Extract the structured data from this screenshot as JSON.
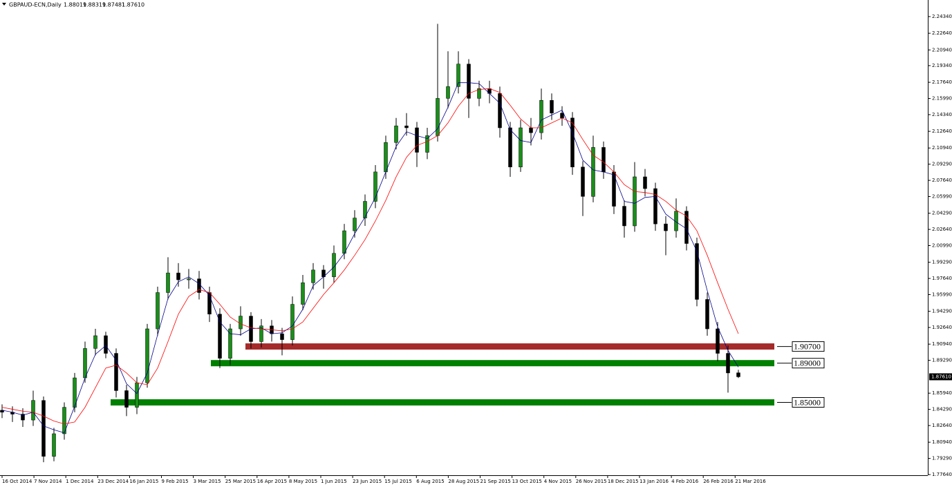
{
  "chart_data": {
    "type": "candlestick",
    "title": "GBPAUD-ECN,Daily",
    "quote": [
      "1.88019",
      "1.88319",
      "1.87481",
      "1.87610"
    ],
    "colors": {
      "up": "#1a8f1a",
      "down": "#000000",
      "wick": "#000000"
    },
    "ohlc": [
      [
        1.842,
        1.848,
        1.834,
        1.84
      ],
      [
        1.84,
        1.846,
        1.83,
        1.838
      ],
      [
        1.838,
        1.844,
        1.825,
        1.832
      ],
      [
        1.832,
        1.862,
        1.826,
        1.852
      ],
      [
        1.852,
        1.856,
        1.789,
        1.795
      ],
      [
        1.795,
        1.824,
        1.79,
        1.818
      ],
      [
        1.818,
        1.85,
        1.812,
        1.845
      ],
      [
        1.845,
        1.88,
        1.84,
        1.875
      ],
      [
        1.875,
        1.912,
        1.87,
        1.905
      ],
      [
        1.905,
        1.925,
        1.898,
        1.918
      ],
      [
        1.918,
        1.922,
        1.895,
        1.9
      ],
      [
        1.9,
        1.905,
        1.855,
        1.862
      ],
      [
        1.862,
        1.868,
        1.836,
        1.845
      ],
      [
        1.845,
        1.876,
        1.838,
        1.87
      ],
      [
        1.87,
        1.93,
        1.865,
        1.925
      ],
      [
        1.925,
        1.968,
        1.918,
        1.962
      ],
      [
        1.962,
        1.998,
        1.955,
        1.982
      ],
      [
        1.982,
        1.992,
        1.968,
        1.975
      ],
      [
        1.975,
        1.986,
        1.966,
        1.976
      ],
      [
        1.976,
        1.984,
        1.955,
        1.962
      ],
      [
        1.962,
        1.968,
        1.932,
        1.94
      ],
      [
        1.94,
        1.946,
        1.885,
        1.895
      ],
      [
        1.895,
        1.93,
        1.888,
        1.925
      ],
      [
        1.925,
        1.948,
        1.918,
        1.938
      ],
      [
        1.938,
        1.942,
        1.905,
        1.912
      ],
      [
        1.912,
        1.935,
        1.906,
        1.928
      ],
      [
        1.928,
        1.934,
        1.912,
        1.92
      ],
      [
        1.92,
        1.926,
        1.898,
        1.914
      ],
      [
        1.914,
        1.958,
        1.908,
        1.95
      ],
      [
        1.95,
        1.98,
        1.944,
        1.972
      ],
      [
        1.972,
        1.992,
        1.965,
        1.985
      ],
      [
        1.985,
        1.99,
        1.966,
        1.978
      ],
      [
        1.978,
        2.01,
        1.972,
        2.002
      ],
      [
        2.002,
        2.032,
        1.996,
        2.025
      ],
      [
        2.025,
        2.046,
        2.018,
        2.038
      ],
      [
        2.038,
        2.062,
        2.03,
        2.055
      ],
      [
        2.055,
        2.092,
        2.048,
        2.085
      ],
      [
        2.085,
        2.122,
        2.078,
        2.115
      ],
      [
        2.115,
        2.14,
        2.108,
        2.132
      ],
      [
        2.132,
        2.145,
        2.122,
        2.13
      ],
      [
        2.13,
        2.136,
        2.09,
        2.105
      ],
      [
        2.105,
        2.13,
        2.098,
        2.122
      ],
      [
        2.122,
        2.236,
        2.116,
        2.16
      ],
      [
        2.16,
        2.208,
        2.15,
        2.172
      ],
      [
        2.172,
        2.208,
        2.165,
        2.195
      ],
      [
        2.195,
        2.2,
        2.14,
        2.16
      ],
      [
        2.16,
        2.178,
        2.152,
        2.17
      ],
      [
        2.17,
        2.178,
        2.155,
        2.165
      ],
      [
        2.165,
        2.172,
        2.12,
        2.13
      ],
      [
        2.13,
        2.136,
        2.08,
        2.09
      ],
      [
        2.09,
        2.138,
        2.085,
        2.13
      ],
      [
        2.13,
        2.14,
        2.112,
        2.125
      ],
      [
        2.125,
        2.17,
        2.118,
        2.158
      ],
      [
        2.158,
        2.165,
        2.138,
        2.145
      ],
      [
        2.145,
        2.152,
        2.132,
        2.14
      ],
      [
        2.14,
        2.146,
        2.082,
        2.09
      ],
      [
        2.09,
        2.096,
        2.04,
        2.06
      ],
      [
        2.06,
        2.122,
        2.054,
        2.11
      ],
      [
        2.11,
        2.116,
        2.078,
        2.085
      ],
      [
        2.085,
        2.092,
        2.042,
        2.05
      ],
      [
        2.05,
        2.056,
        2.018,
        2.03
      ],
      [
        2.03,
        2.095,
        2.024,
        2.08
      ],
      [
        2.08,
        2.088,
        2.06,
        2.068
      ],
      [
        2.068,
        2.074,
        2.025,
        2.032
      ],
      [
        2.032,
        2.04,
        2.0,
        2.025
      ],
      [
        2.025,
        2.058,
        2.018,
        2.045
      ],
      [
        2.045,
        2.05,
        2.005,
        2.012
      ],
      [
        2.012,
        2.018,
        1.948,
        1.955
      ],
      [
        1.955,
        1.962,
        1.918,
        1.925
      ],
      [
        1.925,
        1.932,
        1.892,
        1.9
      ],
      [
        1.9,
        1.908,
        1.86,
        1.88
      ],
      [
        1.88019,
        1.88319,
        1.87481,
        1.8761
      ]
    ],
    "series": [
      {
        "color": "#00008b",
        "values": [
          1.842,
          1.84,
          1.837,
          1.84,
          1.826,
          1.822,
          1.819,
          1.846,
          1.875,
          1.899,
          1.908,
          1.893,
          1.869,
          1.859,
          1.88,
          1.919,
          1.956,
          1.973,
          1.978,
          1.971,
          1.959,
          1.932,
          1.92,
          1.919,
          1.925,
          1.926,
          1.92,
          1.921,
          1.928,
          1.945,
          1.969,
          1.978,
          1.988,
          2.002,
          2.022,
          2.039,
          2.059,
          2.085,
          2.111,
          2.126,
          2.122,
          2.119,
          2.129,
          2.151,
          2.176,
          2.176,
          2.175,
          2.165,
          2.155,
          2.128,
          2.117,
          2.115,
          2.138,
          2.143,
          2.148,
          2.125,
          2.097,
          2.087,
          2.085,
          2.082,
          2.055,
          2.053,
          2.059,
          2.06,
          2.042,
          2.034,
          2.027,
          2.004,
          1.964,
          1.927,
          1.903,
          1.886
        ]
      },
      {
        "color": "#ff0000",
        "values": [
          1.845,
          1.843,
          1.841,
          1.84,
          1.836,
          1.831,
          1.828,
          1.83,
          1.845,
          1.865,
          1.885,
          1.888,
          1.88,
          1.87,
          1.868,
          1.885,
          1.912,
          1.94,
          1.958,
          1.965,
          1.962,
          1.95,
          1.937,
          1.93,
          1.926,
          1.925,
          1.924,
          1.923,
          1.925,
          1.932,
          1.946,
          1.96,
          1.972,
          1.985,
          2.0,
          2.016,
          2.035,
          2.056,
          2.08,
          2.1,
          2.112,
          2.116,
          2.122,
          2.135,
          2.152,
          2.165,
          2.169,
          2.17,
          2.166,
          2.153,
          2.139,
          2.13,
          2.13,
          2.135,
          2.14,
          2.135,
          2.118,
          2.102,
          2.095,
          2.085,
          2.072,
          2.065,
          2.064,
          2.062,
          2.055,
          2.046,
          2.04,
          2.025,
          2.0,
          1.972,
          1.945,
          1.92
        ]
      }
    ],
    "levels": [
      {
        "value": 1.907,
        "label": "1.90700",
        "color": "#a52a2a"
      },
      {
        "value": 1.89,
        "label": "1.89000",
        "color": "#008000"
      },
      {
        "value": 1.85,
        "label": "1.85000",
        "color": "#008000"
      }
    ],
    "current": {
      "value": 1.8761,
      "label": "1.87610"
    },
    "ylim": [
      1.7764,
      2.2589
    ],
    "yticks": [
      {
        "value": 2.2434,
        "label": "2.24340"
      },
      {
        "value": 2.2264,
        "label": "2.22640"
      },
      {
        "value": 2.2094,
        "label": "2.20940"
      },
      {
        "value": 2.1934,
        "label": "2.19340"
      },
      {
        "value": 2.1764,
        "label": "2.17640"
      },
      {
        "value": 2.1599,
        "label": "2.15990"
      },
      {
        "value": 2.1434,
        "label": "2.14340"
      },
      {
        "value": 2.1264,
        "label": "2.12640"
      },
      {
        "value": 2.1094,
        "label": "2.10940"
      },
      {
        "value": 2.0929,
        "label": "2.09290"
      },
      {
        "value": 2.0764,
        "label": "2.07640"
      },
      {
        "value": 2.0599,
        "label": "2.05990"
      },
      {
        "value": 2.0429,
        "label": "2.04290"
      },
      {
        "value": 2.0264,
        "label": "2.02640"
      },
      {
        "value": 2.0099,
        "label": "2.00990"
      },
      {
        "value": 1.9929,
        "label": "1.99290"
      },
      {
        "value": 1.9764,
        "label": "1.97640"
      },
      {
        "value": 1.9599,
        "label": "1.95990"
      },
      {
        "value": 1.9429,
        "label": "1.94290"
      },
      {
        "value": 1.9264,
        "label": "1.92640"
      },
      {
        "value": 1.9094,
        "label": "1.90940"
      },
      {
        "value": 1.8929,
        "label": "1.89290"
      },
      {
        "value": 1.8594,
        "label": "1.85940"
      },
      {
        "value": 1.8429,
        "label": "1.84290"
      },
      {
        "value": 1.8264,
        "label": "1.82640"
      },
      {
        "value": 1.8094,
        "label": "1.80940"
      },
      {
        "value": 1.7929,
        "label": "1.79290"
      },
      {
        "value": 1.7764,
        "label": "1.77640"
      }
    ],
    "x_labels": [
      "16 Oct 2014",
      "7 Nov 2014",
      "1 Dec 2014",
      "23 Dec 2014",
      "16 Jan 2015",
      "9 Feb 2015",
      "3 Mar 2015",
      "25 Mar 2015",
      "16 Apr 2015",
      "8 May 2015",
      "1 Jun 2015",
      "23 Jun 2015",
      "15 Jul 2015",
      "6 Aug 2015",
      "28 Aug 2015",
      "21 Sep 2015",
      "13 Oct 2015",
      "4 Nov 2015",
      "26 Nov 2015",
      "18 Dec 2015",
      "13 Jan 2016",
      "4 Feb 2016",
      "26 Feb 2016",
      "21 Mar 2016"
    ]
  }
}
